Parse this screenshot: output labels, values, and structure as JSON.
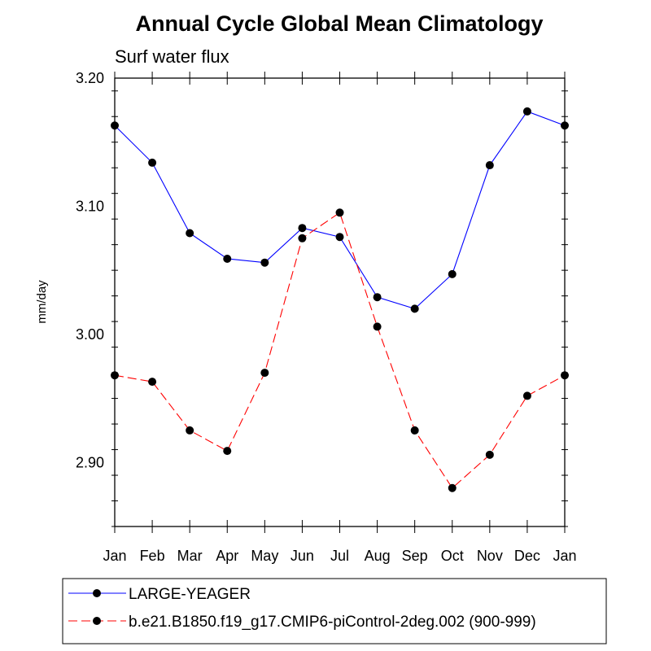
{
  "chart_data": {
    "type": "line",
    "title": "Annual Cycle Global Mean Climatology",
    "subtitle": "Surf water flux",
    "xlabel": "",
    "ylabel": "mm/day",
    "categories": [
      "Jan",
      "Feb",
      "Mar",
      "Apr",
      "May",
      "Jun",
      "Jul",
      "Aug",
      "Sep",
      "Oct",
      "Nov",
      "Dec",
      "Jan"
    ],
    "ylim": [
      2.85,
      3.2
    ],
    "yticks": [
      2.9,
      3.0,
      3.1,
      3.2
    ],
    "ytick_labels": [
      "2.90",
      "3.00",
      "3.10",
      "3.20"
    ],
    "grid": false,
    "legend_position": "bottom",
    "series": [
      {
        "name": "LARGE-YEAGER",
        "color": "#0000ff",
        "dash": "solid",
        "marker": "circle",
        "values": [
          3.163,
          3.134,
          3.079,
          3.059,
          3.056,
          3.083,
          3.076,
          3.029,
          3.02,
          3.047,
          3.132,
          3.174,
          3.163
        ]
      },
      {
        "name": "b.e21.B1850.f19_g17.CMIP6-piControl-2deg.002 (900-999)",
        "color": "#ff0000",
        "dash": "dashed",
        "marker": "circle",
        "values": [
          2.968,
          2.963,
          2.925,
          2.909,
          2.97,
          3.075,
          3.095,
          3.006,
          2.925,
          2.88,
          2.906,
          2.952,
          2.968
        ]
      }
    ]
  }
}
